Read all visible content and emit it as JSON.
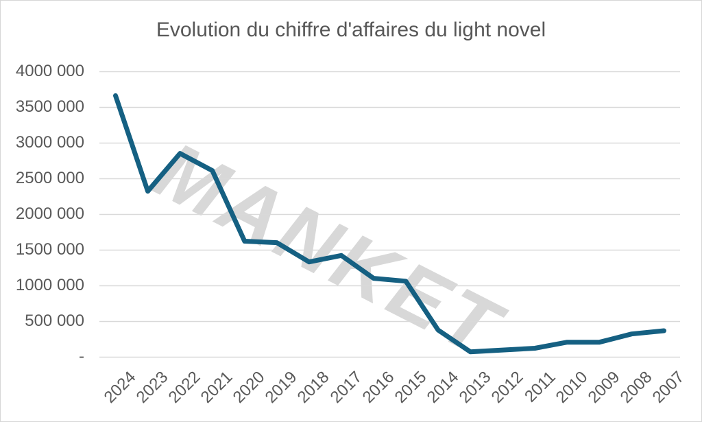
{
  "chart_data": {
    "type": "line",
    "title": "Evolution du chiffre d'affaires du light novel",
    "categories": [
      "2024",
      "2023",
      "2022",
      "2021",
      "2020",
      "2019",
      "2018",
      "2017",
      "2016",
      "2015",
      "2014",
      "2013",
      "2012",
      "2011",
      "2010",
      "2009",
      "2008",
      "2007"
    ],
    "values": [
      3660000,
      2320000,
      2850000,
      2610000,
      1620000,
      1600000,
      1330000,
      1420000,
      1100000,
      1060000,
      375000,
      70000,
      95000,
      120000,
      205000,
      205000,
      320000,
      365000
    ],
    "xlabel": "",
    "ylabel": "",
    "ylim": [
      0,
      4000000
    ],
    "y_ticks": [
      0,
      500000,
      1000000,
      1500000,
      2000000,
      2500000,
      3000000,
      3500000,
      4000000
    ],
    "y_tick_labels": [
      "-",
      "500 000",
      "1000 000",
      "1500 000",
      "2000 000",
      "2500 000",
      "3000 000",
      "3500 000",
      "4000 000"
    ],
    "grid": true,
    "legend_position": "none",
    "line_color": "#156082",
    "grid_color": "#d9d9d9",
    "axis_text_color": "#595959",
    "title_color": "#575757"
  },
  "watermark": {
    "text": "MANKET",
    "color": "#d8d8d8"
  }
}
